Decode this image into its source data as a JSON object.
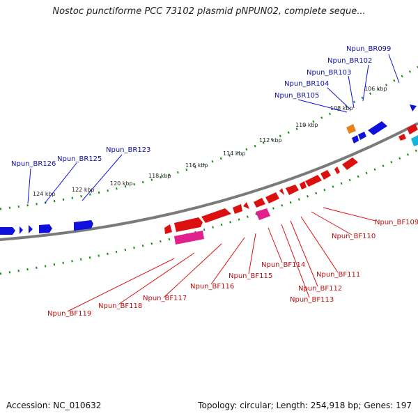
{
  "title": "Nostoc punctiforme PCC 73102 plasmid pNPUN02, complete seque...",
  "footer": {
    "accession": "Accession: NC_010632",
    "summary": "Topology: circular; Length: 254,918 bp; Genes: 197"
  },
  "colors": {
    "reverse_gene": "#1010dd",
    "forward_gene": "#dd1010",
    "forward_gene_alt": "#e0208c",
    "reverse_gene_alt": "#e8831a",
    "cyan_gene": "#18b4e0",
    "tick_marks": "#1a8c1a",
    "backbone": "#808080",
    "reverse_label": "#1010aa",
    "forward_label": "#bb1010"
  },
  "ticks": [
    "106 kbp",
    "108 kbp",
    "110 kbp",
    "112 kbp",
    "114 kbp",
    "116 kbp",
    "118 kbp",
    "120 kbp",
    "122 kbp",
    "124 kbp"
  ],
  "reverse_labels": [
    "Npun_BR099",
    "Npun_BR102",
    "Npun_BR103",
    "Npun_BR104",
    "Npun_BR105",
    "Npun_BR123",
    "Npun_BR125",
    "Npun_BR126"
  ],
  "forward_labels": [
    "Npun_BF109",
    "Npun_BF110",
    "Npun_BF111",
    "Npun_BF112",
    "Npun_BF113",
    "Npun_BF114",
    "Npun_BF115",
    "Npun_BF116",
    "Npun_BF117",
    "Npun_BF118",
    "Npun_BF119"
  ]
}
